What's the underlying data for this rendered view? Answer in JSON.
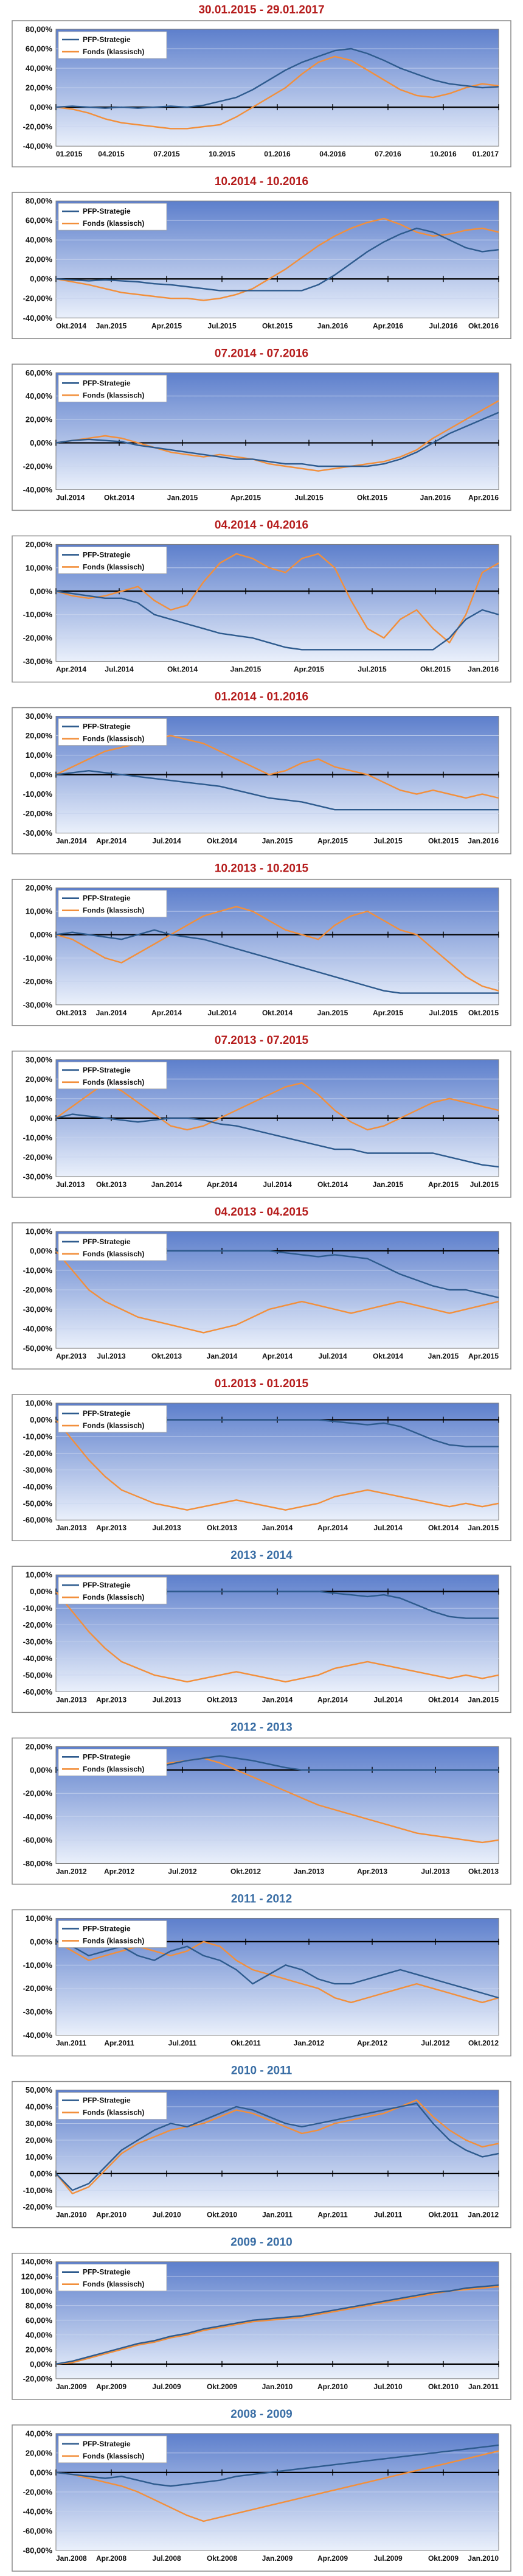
{
  "legend": {
    "strategy": "PFP-Strategie",
    "fund": "Fonds (klassisch)"
  },
  "colors": {
    "strategy": "#2e5b8e",
    "fund": "#f28f3b",
    "red_title": "#b51c1c",
    "blue_title": "#3a6ea5",
    "plot_top": "#5d7fcc",
    "plot_bottom": "#eaf0fb"
  },
  "chart_data": [
    {
      "type": "line",
      "title": "30.01.2015 - 29.01.2017",
      "title_color": "red",
      "yticks": [
        "80,00%",
        "60,00%",
        "40,00%",
        "20,00%",
        "0,00%",
        "-20,00%",
        "-40,00%"
      ],
      "ylim": [
        -40,
        80
      ],
      "xticks": [
        "01.2015",
        "04.2015",
        "07.2015",
        "10.2015",
        "01.2016",
        "04.2016",
        "07.2016",
        "10.2016",
        "01.2017"
      ],
      "strategy": [
        0,
        1,
        0,
        -1,
        0,
        -1,
        0,
        1,
        0,
        2,
        6,
        10,
        18,
        28,
        38,
        46,
        52,
        58,
        60,
        55,
        48,
        40,
        34,
        28,
        24,
        22,
        20,
        21
      ],
      "fund": [
        0,
        -2,
        -6,
        -12,
        -16,
        -18,
        -20,
        -22,
        -22,
        -20,
        -18,
        -10,
        0,
        10,
        20,
        34,
        46,
        52,
        48,
        38,
        28,
        18,
        12,
        10,
        14,
        20,
        24,
        22
      ]
    },
    {
      "type": "line",
      "title": "10.2014 - 10.2016",
      "title_color": "red",
      "yticks": [
        "80,00%",
        "60,00%",
        "40,00%",
        "20,00%",
        "0,00%",
        "-20,00%",
        "-40,00%"
      ],
      "ylim": [
        -40,
        80
      ],
      "xticks": [
        "Okt.2014",
        "Jan.2015",
        "Apr.2015",
        "Jul.2015",
        "Okt.2015",
        "Jan.2016",
        "Apr.2016",
        "Jul.2016",
        "Okt.2016"
      ],
      "strategy": [
        0,
        -1,
        -2,
        -1,
        -2,
        -3,
        -5,
        -6,
        -8,
        -10,
        -12,
        -12,
        -12,
        -12,
        -12,
        -12,
        -6,
        4,
        16,
        28,
        38,
        46,
        52,
        48,
        40,
        32,
        28,
        30
      ],
      "fund": [
        0,
        -3,
        -6,
        -10,
        -14,
        -16,
        -18,
        -20,
        -20,
        -22,
        -20,
        -16,
        -10,
        0,
        10,
        22,
        34,
        44,
        52,
        58,
        62,
        56,
        48,
        44,
        46,
        50,
        52,
        48
      ]
    },
    {
      "type": "line",
      "title": "07.2014 - 07.2016",
      "title_color": "red",
      "yticks": [
        "60,00%",
        "40,00%",
        "20,00%",
        "0,00%",
        "-20,00%",
        "-40,00%"
      ],
      "ylim": [
        -40,
        60
      ],
      "xticks": [
        "Jul.2014",
        "Okt.2014",
        "Jan.2015",
        "Apr.2015",
        "Jul.2015",
        "Okt.2015",
        "Jan.2016",
        "Apr.2016"
      ],
      "strategy": [
        0,
        2,
        3,
        2,
        1,
        -2,
        -4,
        -6,
        -8,
        -10,
        -12,
        -14,
        -14,
        -16,
        -18,
        -18,
        -20,
        -20,
        -20,
        -20,
        -18,
        -14,
        -8,
        0,
        8,
        14,
        20,
        26
      ],
      "fund": [
        0,
        2,
        4,
        6,
        4,
        0,
        -4,
        -8,
        -10,
        -12,
        -10,
        -12,
        -14,
        -18,
        -20,
        -22,
        -24,
        -22,
        -20,
        -18,
        -16,
        -12,
        -6,
        4,
        12,
        20,
        28,
        36
      ]
    },
    {
      "type": "line",
      "title": "04.2014 - 04.2016",
      "title_color": "red",
      "yticks": [
        "20,00%",
        "10,00%",
        "0,00%",
        "-10,00%",
        "-20,00%",
        "-30,00%"
      ],
      "ylim": [
        -30,
        20
      ],
      "xticks": [
        "Apr.2014",
        "Jul.2014",
        "Okt.2014",
        "Jan.2015",
        "Apr.2015",
        "Jul.2015",
        "Okt.2015",
        "Jan.2016"
      ],
      "strategy": [
        0,
        -1,
        -2,
        -3,
        -3,
        -5,
        -10,
        -12,
        -14,
        -16,
        -18,
        -19,
        -20,
        -22,
        -24,
        -25,
        -25,
        -25,
        -25,
        -25,
        -25,
        -25,
        -25,
        -25,
        -20,
        -12,
        -8,
        -10
      ],
      "fund": [
        0,
        -2,
        -3,
        -2,
        0,
        2,
        -4,
        -8,
        -6,
        4,
        12,
        16,
        14,
        10,
        8,
        14,
        16,
        10,
        -4,
        -16,
        -20,
        -12,
        -8,
        -16,
        -22,
        -10,
        8,
        12
      ]
    },
    {
      "type": "line",
      "title": "01.2014 - 01.2016",
      "title_color": "red",
      "yticks": [
        "30,00%",
        "20,00%",
        "10,00%",
        "0,00%",
        "-10,00%",
        "-20,00%",
        "-30,00%"
      ],
      "ylim": [
        -30,
        30
      ],
      "xticks": [
        "Jan.2014",
        "Apr.2014",
        "Jul.2014",
        "Okt.2014",
        "Jan.2015",
        "Apr.2015",
        "Jul.2015",
        "Okt.2015",
        "Jan.2016"
      ],
      "strategy": [
        0,
        1,
        2,
        1,
        0,
        -1,
        -2,
        -3,
        -4,
        -5,
        -6,
        -8,
        -10,
        -12,
        -13,
        -14,
        -16,
        -18,
        -18,
        -18,
        -18,
        -18,
        -18,
        -18,
        -18,
        -18,
        -18,
        -18
      ],
      "fund": [
        0,
        4,
        8,
        12,
        14,
        16,
        18,
        20,
        18,
        16,
        12,
        8,
        4,
        0,
        2,
        6,
        8,
        4,
        2,
        0,
        -4,
        -8,
        -10,
        -8,
        -10,
        -12,
        -10,
        -12
      ]
    },
    {
      "type": "line",
      "title": "10.2013 - 10.2015",
      "title_color": "red",
      "yticks": [
        "20,00%",
        "10,00%",
        "0,00%",
        "-10,00%",
        "-20,00%",
        "-30,00%"
      ],
      "ylim": [
        -30,
        20
      ],
      "xticks": [
        "Okt.2013",
        "Jan.2014",
        "Apr.2014",
        "Jul.2014",
        "Okt.2014",
        "Jan.2015",
        "Apr.2015",
        "Jul.2015",
        "Okt.2015"
      ],
      "strategy": [
        0,
        1,
        0,
        -1,
        -2,
        0,
        2,
        0,
        -1,
        -2,
        -4,
        -6,
        -8,
        -10,
        -12,
        -14,
        -16,
        -18,
        -20,
        -22,
        -24,
        -25,
        -25,
        -25,
        -25,
        -25,
        -25,
        -25
      ],
      "fund": [
        0,
        -2,
        -6,
        -10,
        -12,
        -8,
        -4,
        0,
        4,
        8,
        10,
        12,
        10,
        6,
        2,
        0,
        -2,
        4,
        8,
        10,
        6,
        2,
        0,
        -6,
        -12,
        -18,
        -22,
        -24
      ]
    },
    {
      "type": "line",
      "title": "07.2013 - 07.2015",
      "title_color": "red",
      "yticks": [
        "30,00%",
        "20,00%",
        "10,00%",
        "0,00%",
        "-10,00%",
        "-20,00%",
        "-30,00%"
      ],
      "ylim": [
        -30,
        30
      ],
      "xticks": [
        "Jul.2013",
        "Okt.2013",
        "Jan.2014",
        "Apr.2014",
        "Jul.2014",
        "Okt.2014",
        "Jan.2015",
        "Apr.2015",
        "Jul.2015"
      ],
      "strategy": [
        0,
        2,
        1,
        0,
        -1,
        -2,
        -1,
        0,
        0,
        -1,
        -3,
        -4,
        -6,
        -8,
        -10,
        -12,
        -14,
        -16,
        -16,
        -18,
        -18,
        -18,
        -18,
        -18,
        -20,
        -22,
        -24,
        -25
      ],
      "fund": [
        0,
        6,
        12,
        18,
        14,
        8,
        2,
        -4,
        -6,
        -4,
        0,
        4,
        8,
        12,
        16,
        18,
        12,
        4,
        -2,
        -6,
        -4,
        0,
        4,
        8,
        10,
        8,
        6,
        4
      ]
    },
    {
      "type": "line",
      "title": "04.2013 - 04.2015",
      "title_color": "red",
      "yticks": [
        "10,00%",
        "0,00%",
        "-10,00%",
        "-20,00%",
        "-30,00%",
        "-40,00%",
        "-50,00%"
      ],
      "ylim": [
        -50,
        10
      ],
      "xticks": [
        "Apr.2013",
        "Jul.2013",
        "Okt.2013",
        "Jan.2014",
        "Apr.2014",
        "Jul.2014",
        "Okt.2014",
        "Jan.2015",
        "Apr.2015"
      ],
      "strategy": [
        0,
        0,
        0,
        0,
        0,
        0,
        0,
        0,
        0,
        0,
        0,
        0,
        0,
        0,
        -1,
        -2,
        -3,
        -2,
        -3,
        -4,
        -8,
        -12,
        -15,
        -18,
        -20,
        -20,
        -22,
        -24
      ],
      "fund": [
        0,
        -10,
        -20,
        -26,
        -30,
        -34,
        -36,
        -38,
        -40,
        -42,
        -40,
        -38,
        -34,
        -30,
        -28,
        -26,
        -28,
        -30,
        -32,
        -30,
        -28,
        -26,
        -28,
        -30,
        -32,
        -30,
        -28,
        -26
      ]
    },
    {
      "type": "line",
      "title": "01.2013 - 01.2015",
      "title_color": "red",
      "yticks": [
        "10,00%",
        "0,00%",
        "-10,00%",
        "-20,00%",
        "-30,00%",
        "-40,00%",
        "-50,00%",
        "-60,00%"
      ],
      "ylim": [
        -60,
        10
      ],
      "xticks": [
        "Jan.2013",
        "Apr.2013",
        "Jul.2013",
        "Okt.2013",
        "Jan.2014",
        "Apr.2014",
        "Jul.2014",
        "Okt.2014",
        "Jan.2015"
      ],
      "strategy": [
        0,
        0,
        0,
        0,
        0,
        0,
        0,
        0,
        0,
        0,
        0,
        0,
        0,
        0,
        0,
        0,
        0,
        -1,
        -2,
        -3,
        -2,
        -4,
        -8,
        -12,
        -15,
        -16,
        -16,
        -16
      ],
      "fund": [
        0,
        -12,
        -24,
        -34,
        -42,
        -46,
        -50,
        -52,
        -54,
        -52,
        -50,
        -48,
        -50,
        -52,
        -54,
        -52,
        -50,
        -46,
        -44,
        -42,
        -44,
        -46,
        -48,
        -50,
        -52,
        -50,
        -52,
        -50
      ]
    },
    {
      "type": "line",
      "title": "2013 - 2014",
      "title_color": "blue",
      "yticks": [
        "10,00%",
        "0,00%",
        "-10,00%",
        "-20,00%",
        "-30,00%",
        "-40,00%",
        "-50,00%",
        "-60,00%"
      ],
      "ylim": [
        -60,
        10
      ],
      "xticks": [
        "Jan.2013",
        "Apr.2013",
        "Jul.2013",
        "Okt.2013",
        "Jan.2014",
        "Apr.2014",
        "Jul.2014",
        "Okt.2014",
        "Jan.2015"
      ],
      "strategy": [
        0,
        0,
        0,
        0,
        0,
        0,
        0,
        0,
        0,
        0,
        0,
        0,
        0,
        0,
        0,
        0,
        0,
        -1,
        -2,
        -3,
        -2,
        -4,
        -8,
        -12,
        -15,
        -16,
        -16,
        -16
      ],
      "fund": [
        0,
        -12,
        -24,
        -34,
        -42,
        -46,
        -50,
        -52,
        -54,
        -52,
        -50,
        -48,
        -50,
        -52,
        -54,
        -52,
        -50,
        -46,
        -44,
        -42,
        -44,
        -46,
        -48,
        -50,
        -52,
        -50,
        -52,
        -50
      ]
    },
    {
      "type": "line",
      "title": "2012 - 2013",
      "title_color": "blue",
      "yticks": [
        "20,00%",
        "0,00%",
        "-20,00%",
        "-40,00%",
        "-60,00%",
        "-80,00%"
      ],
      "ylim": [
        -80,
        20
      ],
      "xticks": [
        "Jan.2012",
        "Apr.2012",
        "Jul.2012",
        "Okt.2012",
        "Jan.2013",
        "Apr.2013",
        "Jul.2013",
        "Okt.2013"
      ],
      "strategy": [
        0,
        0,
        0,
        0,
        0,
        0,
        2,
        5,
        8,
        10,
        12,
        10,
        8,
        5,
        2,
        0,
        0,
        0,
        0,
        0,
        0,
        0,
        0,
        0,
        0,
        0,
        0,
        0
      ],
      "fund": [
        0,
        -2,
        -4,
        -2,
        0,
        2,
        4,
        6,
        8,
        10,
        6,
        0,
        -6,
        -12,
        -18,
        -24,
        -30,
        -34,
        -38,
        -42,
        -46,
        -50,
        -54,
        -56,
        -58,
        -60,
        -62,
        -60
      ]
    },
    {
      "type": "line",
      "title": "2011 - 2012",
      "title_color": "blue",
      "yticks": [
        "10,00%",
        "0,00%",
        "-10,00%",
        "-20,00%",
        "-30,00%",
        "-40,00%"
      ],
      "ylim": [
        -40,
        10
      ],
      "xticks": [
        "Jan.2011",
        "Apr.2011",
        "Jul.2011",
        "Okt.2011",
        "Jan.2012",
        "Apr.2012",
        "Jul.2012",
        "Okt.2012"
      ],
      "strategy": [
        0,
        -2,
        -6,
        -4,
        -2,
        -6,
        -8,
        -4,
        -2,
        -6,
        -8,
        -12,
        -18,
        -14,
        -10,
        -12,
        -16,
        -18,
        -18,
        -16,
        -14,
        -12,
        -14,
        -16,
        -18,
        -20,
        -22,
        -24
      ],
      "fund": [
        0,
        -4,
        -8,
        -6,
        -4,
        -2,
        -4,
        -6,
        -4,
        0,
        -2,
        -8,
        -12,
        -14,
        -16,
        -18,
        -20,
        -24,
        -26,
        -24,
        -22,
        -20,
        -18,
        -20,
        -22,
        -24,
        -26,
        -24
      ]
    },
    {
      "type": "line",
      "title": "2010 - 2011",
      "title_color": "blue",
      "yticks": [
        "50,00%",
        "40,00%",
        "30,00%",
        "20,00%",
        "10,00%",
        "0,00%",
        "-10,00%",
        "-20,00%"
      ],
      "ylim": [
        -20,
        50
      ],
      "xticks": [
        "Jan.2010",
        "Apr.2010",
        "Jul.2010",
        "Okt.2010",
        "Jan.2011",
        "Apr.2011",
        "Jul.2011",
        "Okt.2011",
        "Jan.2012"
      ],
      "strategy": [
        0,
        -10,
        -6,
        4,
        14,
        20,
        26,
        30,
        28,
        32,
        36,
        40,
        38,
        34,
        30,
        28,
        30,
        32,
        34,
        36,
        38,
        40,
        42,
        30,
        20,
        14,
        10,
        12
      ],
      "fund": [
        0,
        -12,
        -8,
        2,
        12,
        18,
        22,
        26,
        28,
        30,
        34,
        38,
        36,
        32,
        28,
        24,
        26,
        30,
        32,
        34,
        36,
        40,
        44,
        34,
        26,
        20,
        16,
        18
      ]
    },
    {
      "type": "line",
      "title": "2009 - 2010",
      "title_color": "blue",
      "yticks": [
        "140,00%",
        "120,00%",
        "100,00%",
        "80,00%",
        "60,00%",
        "40,00%",
        "20,00%",
        "0,00%",
        "-20,00%"
      ],
      "ylim": [
        -20,
        140
      ],
      "xticks": [
        "Jan.2009",
        "Apr.2009",
        "Jul.2009",
        "Okt.2009",
        "Jan.2010",
        "Apr.2010",
        "Jul.2010",
        "Okt.2010",
        "Jan.2011"
      ],
      "strategy": [
        0,
        4,
        10,
        16,
        22,
        28,
        32,
        38,
        42,
        48,
        52,
        56,
        60,
        62,
        64,
        66,
        70,
        74,
        78,
        82,
        86,
        90,
        94,
        98,
        100,
        104,
        106,
        108
      ],
      "fund": [
        0,
        2,
        8,
        14,
        20,
        26,
        30,
        36,
        40,
        46,
        50,
        54,
        58,
        60,
        62,
        64,
        68,
        72,
        76,
        80,
        84,
        88,
        92,
        96,
        100,
        102,
        104,
        106
      ]
    },
    {
      "type": "line",
      "title": "2008 - 2009",
      "title_color": "blue",
      "yticks": [
        "40,00%",
        "20,00%",
        "0,00%",
        "-20,00%",
        "-40,00%",
        "-60,00%",
        "-80,00%"
      ],
      "ylim": [
        -80,
        40
      ],
      "xticks": [
        "Jan.2008",
        "Apr.2008",
        "Jul.2008",
        "Okt.2008",
        "Jan.2009",
        "Apr.2009",
        "Jul.2009",
        "Okt.2009",
        "Jan.2010"
      ],
      "strategy": [
        0,
        -2,
        -4,
        -6,
        -4,
        -8,
        -12,
        -14,
        -12,
        -10,
        -8,
        -4,
        -2,
        0,
        2,
        4,
        6,
        8,
        10,
        12,
        14,
        16,
        18,
        20,
        22,
        24,
        26,
        28
      ],
      "fund": [
        0,
        -2,
        -6,
        -10,
        -14,
        -20,
        -28,
        -36,
        -44,
        -50,
        -46,
        -42,
        -38,
        -34,
        -30,
        -26,
        -22,
        -18,
        -14,
        -10,
        -6,
        -2,
        2,
        6,
        10,
        14,
        18,
        22
      ]
    }
  ]
}
